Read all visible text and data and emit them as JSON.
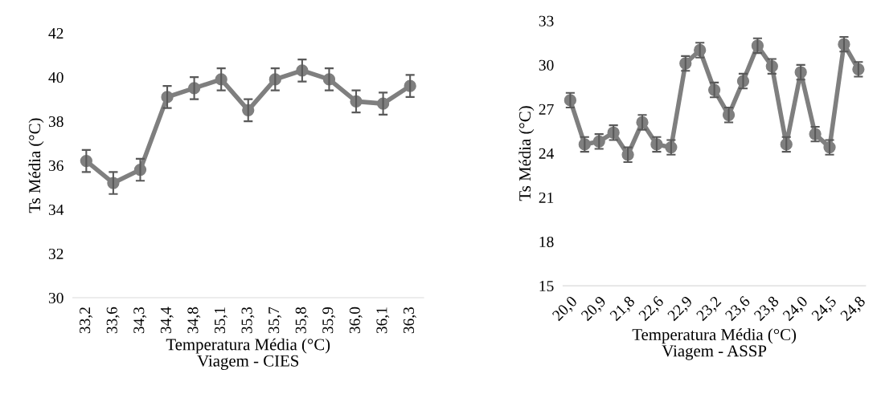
{
  "chart_data": [
    {
      "type": "line",
      "xlabel": "Temperatura Média (°C)\nViagem - CIES",
      "ylabel": "Ts Média (°C)",
      "categories": [
        "33,2",
        "33,6",
        "34,3",
        "34,4",
        "34,8",
        "35,1",
        "35,3",
        "35,7",
        "35,8",
        "35,9",
        "36,0",
        "36,1",
        "36,3"
      ],
      "series": [
        {
          "color": "#7f7f7f",
          "values": [
            36.2,
            35.2,
            35.8,
            39.1,
            39.5,
            39.9,
            38.5,
            39.9,
            40.3,
            39.9,
            38.9,
            38.8,
            39.6
          ],
          "errors": [
            0.5,
            0.5,
            0.5,
            0.5,
            0.5,
            0.5,
            0.5,
            0.5,
            0.5,
            0.5,
            0.5,
            0.5,
            0.5
          ]
        }
      ],
      "ylim": [
        30,
        42
      ],
      "yticks": [
        30,
        32,
        34,
        36,
        38,
        40,
        42
      ],
      "marker": "circle",
      "line_style": "solid",
      "grid": false,
      "legend": false
    },
    {
      "type": "line",
      "xlabel": "Temperatura Média (°C)\nViagem - ASSP",
      "ylabel": "Ts Média (°C)",
      "categories": [
        "20,0",
        null,
        "20,9",
        null,
        "21,8",
        null,
        "22,6",
        null,
        "22,9",
        null,
        "23,2",
        null,
        "23,6",
        null,
        "23,8",
        null,
        "24,0",
        null,
        "24,5",
        null,
        "24,8"
      ],
      "series": [
        {
          "color": "#7f7f7f",
          "values": [
            27.6,
            24.6,
            24.8,
            25.4,
            23.9,
            26.1,
            24.6,
            24.4,
            30.1,
            31.0,
            28.3,
            26.6,
            28.9,
            31.3,
            29.9,
            24.6,
            29.5,
            25.3,
            24.4,
            31.4,
            29.7
          ],
          "errors": [
            0.5,
            0.5,
            0.5,
            0.5,
            0.5,
            0.5,
            0.5,
            0.5,
            0.5,
            0.5,
            0.5,
            0.5,
            0.5,
            0.5,
            0.5,
            0.5,
            0.5,
            0.5,
            0.5,
            0.5,
            0.5
          ]
        }
      ],
      "ylim": [
        15,
        33
      ],
      "yticks": [
        15,
        18,
        21,
        24,
        27,
        30,
        33
      ],
      "marker": "circle",
      "line_style": "solid",
      "grid": false,
      "legend": false
    }
  ]
}
